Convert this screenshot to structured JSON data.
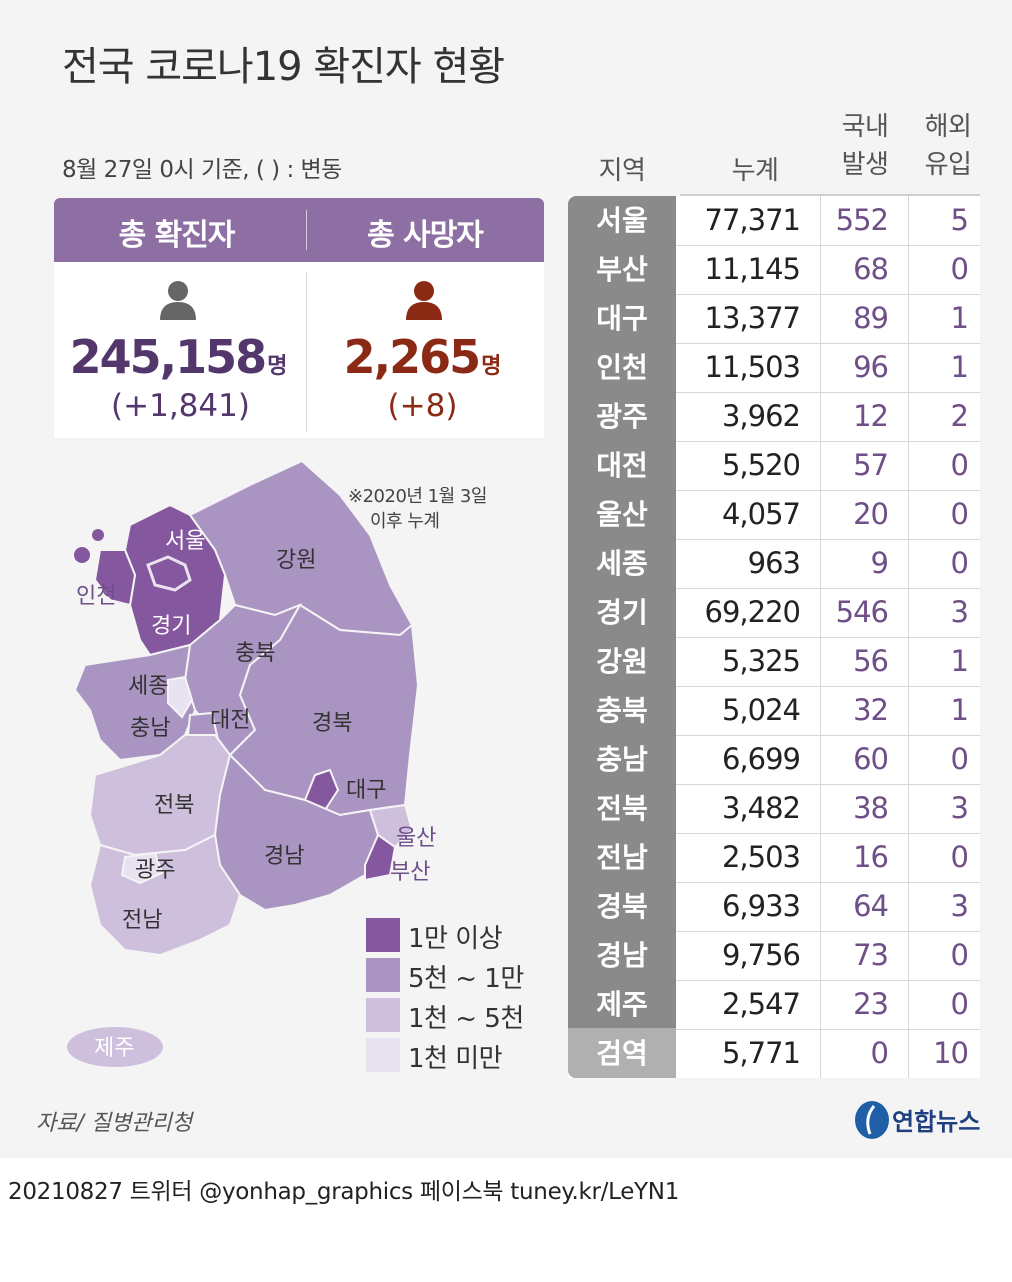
{
  "title": "전국 코로나19 확진자 현황",
  "basis": "8월 27일 0시 기준, ( ) : 변동",
  "summary": {
    "confirmed_label": "총 확진자",
    "deaths_label": "총 사망자",
    "confirmed_value": "245,158",
    "deaths_value": "2,265",
    "unit": "명",
    "confirmed_change": "(+1,841)",
    "deaths_change": "(+8)",
    "confirmed_color": "#53366b",
    "deaths_color": "#8b2a14"
  },
  "note_line1": "※2020년 1월 3일",
  "note_line2": "이후 누계",
  "legend": [
    {
      "label": "1만 이상",
      "color": "#84579e"
    },
    {
      "label": "5천 ~ 1만",
      "color": "#a994c2"
    },
    {
      "label": "1천 ~ 5천",
      "color": "#cebfdd"
    },
    {
      "label": "1천 미만",
      "color": "#e9e2f0"
    }
  ],
  "map_labels": {
    "seoul": "서울",
    "incheon": "인천",
    "gyeonggi": "경기",
    "gangwon": "강원",
    "chungbuk": "충북",
    "sejong": "세종",
    "chungnam": "충남",
    "daejeon": "대전",
    "gyeongbuk": "경북",
    "daegu": "대구",
    "ulsan": "울산",
    "busan": "부산",
    "jeonbuk": "전북",
    "gwangju": "광주",
    "jeonnam": "전남",
    "gyeongnam": "경남",
    "jeju": "제주"
  },
  "table_headers": {
    "region": "지역",
    "total": "누계",
    "domestic_line1": "국내",
    "domestic_line2": "발생",
    "overseas_line1": "해외",
    "overseas_line2": "유입"
  },
  "source": "자료/ 질병관리청",
  "logo_text": "연합뉴스",
  "footer": "20210827  트위터 @yonhap_graphics  페이스북 tuney.kr/LeYN1",
  "chart_data": {
    "type": "table",
    "columns": [
      "지역",
      "누계",
      "국내 발생",
      "해외 유입"
    ],
    "rows": [
      {
        "region": "서울",
        "total": "77,371",
        "domestic": "552",
        "overseas": "5"
      },
      {
        "region": "부산",
        "total": "11,145",
        "domestic": "68",
        "overseas": "0"
      },
      {
        "region": "대구",
        "total": "13,377",
        "domestic": "89",
        "overseas": "1"
      },
      {
        "region": "인천",
        "total": "11,503",
        "domestic": "96",
        "overseas": "1"
      },
      {
        "region": "광주",
        "total": "3,962",
        "domestic": "12",
        "overseas": "2"
      },
      {
        "region": "대전",
        "total": "5,520",
        "domestic": "57",
        "overseas": "0"
      },
      {
        "region": "울산",
        "total": "4,057",
        "domestic": "20",
        "overseas": "0"
      },
      {
        "region": "세종",
        "total": "963",
        "domestic": "9",
        "overseas": "0"
      },
      {
        "region": "경기",
        "total": "69,220",
        "domestic": "546",
        "overseas": "3"
      },
      {
        "region": "강원",
        "total": "5,325",
        "domestic": "56",
        "overseas": "1"
      },
      {
        "region": "충북",
        "total": "5,024",
        "domestic": "32",
        "overseas": "1"
      },
      {
        "region": "충남",
        "total": "6,699",
        "domestic": "60",
        "overseas": "0"
      },
      {
        "region": "전북",
        "total": "3,482",
        "domestic": "38",
        "overseas": "3"
      },
      {
        "region": "전남",
        "total": "2,503",
        "domestic": "16",
        "overseas": "0"
      },
      {
        "region": "경북",
        "total": "6,933",
        "domestic": "64",
        "overseas": "3"
      },
      {
        "region": "경남",
        "total": "9,756",
        "domestic": "73",
        "overseas": "0"
      },
      {
        "region": "제주",
        "total": "2,547",
        "domestic": "23",
        "overseas": "0"
      },
      {
        "region": "검역",
        "total": "5,771",
        "domestic": "0",
        "overseas": "10"
      }
    ]
  }
}
